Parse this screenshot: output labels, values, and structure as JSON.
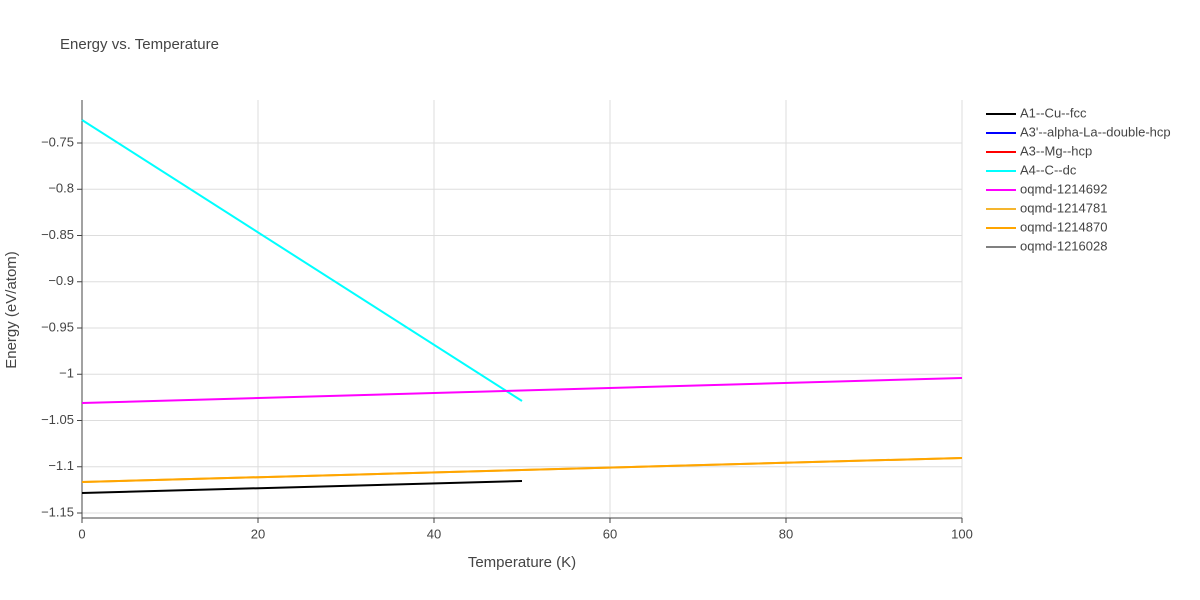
{
  "chart_data": {
    "type": "line",
    "title": "Energy vs. Temperature",
    "xlabel": "Temperature (K)",
    "ylabel": "Energy (eV/atom)",
    "xlim": [
      0,
      100
    ],
    "xticks": [
      0,
      20,
      40,
      60,
      80,
      100
    ],
    "ylim": [
      -1.1554,
      -0.7035
    ],
    "yticks": [
      {
        "value": -0.75,
        "label": "−0.75"
      },
      {
        "value": -0.8,
        "label": "−0.8"
      },
      {
        "value": -0.85,
        "label": "−0.85"
      },
      {
        "value": -0.9,
        "label": "−0.9"
      },
      {
        "value": -0.95,
        "label": "−0.95"
      },
      {
        "value": -1,
        "label": "−1"
      },
      {
        "value": -1.05,
        "label": "−1.05"
      },
      {
        "value": -1.1,
        "label": "−1.1"
      },
      {
        "value": -1.15,
        "label": "−1.15"
      }
    ],
    "grid": true,
    "legend": "right",
    "series": [
      {
        "name": "A1--Cu--fcc",
        "color": "#000000",
        "x": [
          0,
          50
        ],
        "values": [
          -1.1284,
          -1.1154
        ]
      },
      {
        "name": "A3'--alpha-La--double-hcp",
        "color": "#0000ff",
        "x": [],
        "values": []
      },
      {
        "name": "A3--Mg--hcp",
        "color": "#ff0000",
        "x": [],
        "values": []
      },
      {
        "name": "A4--C--dc",
        "color": "#00ffff",
        "x": [
          0,
          50
        ],
        "values": [
          -0.7251,
          -1.0289
        ]
      },
      {
        "name": "oqmd-1214692",
        "color": "#ff00ff",
        "x": [
          0,
          100
        ],
        "values": [
          -1.0311,
          -1.004
        ]
      },
      {
        "name": "oqmd-1214781",
        "color": "#f5b52e",
        "x": [
          0,
          100
        ],
        "values": [
          -1.1165,
          -1.0905
        ]
      },
      {
        "name": "oqmd-1214870",
        "color": "#ffa500",
        "x": [
          0,
          100
        ],
        "values": [
          -1.1165,
          -1.0905
        ]
      },
      {
        "name": "oqmd-1216028",
        "color": "#808080",
        "x": [],
        "values": []
      }
    ]
  }
}
